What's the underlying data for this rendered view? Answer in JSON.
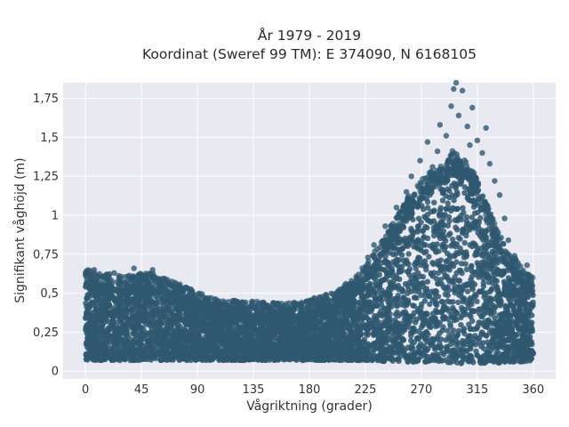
{
  "chart_data": {
    "type": "scatter",
    "title_lines": [
      "År 1979 - 2019",
      "Koordinat (Sweref 99 TM): E 374090, N 6168105"
    ],
    "xlabel": "Vågriktning (grader)",
    "ylabel": "Signifikant våghöjd (m)",
    "xlim": [
      -18,
      378
    ],
    "ylim": [
      -0.05,
      1.85
    ],
    "xticks": [
      0,
      45,
      90,
      135,
      180,
      225,
      270,
      315,
      360
    ],
    "xtick_labels": [
      "0",
      "45",
      "90",
      "135",
      "180",
      "225",
      "270",
      "315",
      "360"
    ],
    "yticks": [
      0,
      0.25,
      0.5,
      0.75,
      1,
      1.25,
      1.5,
      1.75
    ],
    "ytick_labels": [
      "0",
      "0,25",
      "0,5",
      "0,75",
      "1",
      "1,25",
      "1,5",
      "1,75"
    ],
    "grid": true,
    "point_color": "#2f5870",
    "background_color": "#e9e9f2",
    "envelope": {
      "x": [
        0,
        10,
        20,
        30,
        45,
        55,
        70,
        90,
        110,
        135,
        160,
        180,
        200,
        215,
        230,
        245,
        260,
        270,
        280,
        290,
        295,
        300,
        310,
        320,
        330,
        340,
        350,
        360
      ],
      "y_min": [
        0.07,
        0.07,
        0.07,
        0.07,
        0.07,
        0.07,
        0.07,
        0.07,
        0.07,
        0.07,
        0.07,
        0.07,
        0.07,
        0.07,
        0.07,
        0.06,
        0.06,
        0.06,
        0.06,
        0.05,
        0.05,
        0.05,
        0.05,
        0.05,
        0.05,
        0.06,
        0.06,
        0.07
      ],
      "y_max": [
        0.58,
        0.55,
        0.55,
        0.53,
        0.55,
        0.55,
        0.5,
        0.43,
        0.38,
        0.37,
        0.36,
        0.38,
        0.43,
        0.52,
        0.66,
        0.85,
        1.05,
        1.15,
        1.22,
        1.25,
        1.35,
        1.3,
        1.25,
        1.05,
        0.85,
        0.7,
        0.6,
        0.52
      ]
    },
    "outliers": [
      {
        "x": 298,
        "y": 1.85
      },
      {
        "x": 296,
        "y": 1.81
      },
      {
        "x": 303,
        "y": 1.8
      },
      {
        "x": 311,
        "y": 1.69
      },
      {
        "x": 294,
        "y": 1.7
      },
      {
        "x": 300,
        "y": 1.64
      },
      {
        "x": 322,
        "y": 1.56
      },
      {
        "x": 285,
        "y": 1.58
      },
      {
        "x": 307,
        "y": 1.57
      },
      {
        "x": 275,
        "y": 1.47
      },
      {
        "x": 290,
        "y": 1.51
      },
      {
        "x": 315,
        "y": 1.48
      },
      {
        "x": 309,
        "y": 1.45
      },
      {
        "x": 283,
        "y": 1.41
      },
      {
        "x": 319,
        "y": 1.4
      },
      {
        "x": 269,
        "y": 1.35
      },
      {
        "x": 279,
        "y": 1.31
      },
      {
        "x": 325,
        "y": 1.33
      },
      {
        "x": 262,
        "y": 1.25
      },
      {
        "x": 329,
        "y": 1.22
      },
      {
        "x": 258,
        "y": 1.15
      },
      {
        "x": 333,
        "y": 1.13
      },
      {
        "x": 250,
        "y": 1.05
      },
      {
        "x": 337,
        "y": 0.98
      },
      {
        "x": 241,
        "y": 0.93
      },
      {
        "x": 340,
        "y": 0.84
      },
      {
        "x": 232,
        "y": 0.81
      },
      {
        "x": 227,
        "y": 0.73
      },
      {
        "x": 345,
        "y": 0.74
      },
      {
        "x": 355,
        "y": 0.68
      },
      {
        "x": 350,
        "y": 0.62
      },
      {
        "x": 358,
        "y": 0.59
      },
      {
        "x": 220,
        "y": 0.58
      },
      {
        "x": 4,
        "y": 0.62
      },
      {
        "x": 7,
        "y": 0.65
      },
      {
        "x": 1,
        "y": 0.63
      },
      {
        "x": 23,
        "y": 0.63
      },
      {
        "x": 27,
        "y": 0.6
      },
      {
        "x": 39,
        "y": 0.66
      },
      {
        "x": 54,
        "y": 0.65
      },
      {
        "x": 47,
        "y": 0.61
      },
      {
        "x": 60,
        "y": 0.58
      },
      {
        "x": 65,
        "y": 0.55
      },
      {
        "x": 73,
        "y": 0.53
      },
      {
        "x": 79,
        "y": 0.52
      },
      {
        "x": 86,
        "y": 0.47
      },
      {
        "x": 96,
        "y": 0.43
      },
      {
        "x": 104,
        "y": 0.41
      },
      {
        "x": 118,
        "y": 0.39
      },
      {
        "x": 132,
        "y": 0.38
      },
      {
        "x": 150,
        "y": 0.38
      },
      {
        "x": 165,
        "y": 0.39
      },
      {
        "x": 184,
        "y": 0.47
      },
      {
        "x": 194,
        "y": 0.45
      },
      {
        "x": 207,
        "y": 0.52
      },
      {
        "x": 213,
        "y": 0.56
      }
    ]
  }
}
